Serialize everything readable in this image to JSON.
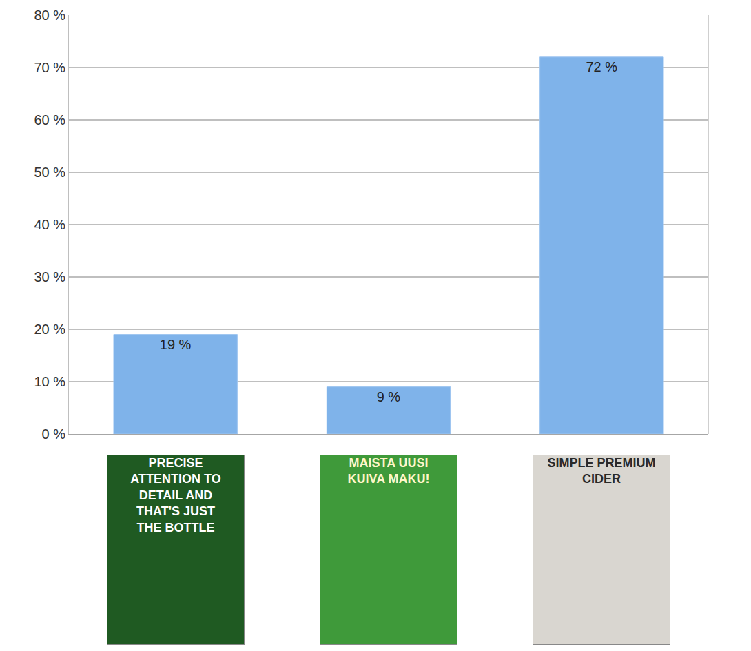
{
  "chart_data": {
    "type": "bar",
    "categories": [
      "PRECISE ATTENTION TO DETAIL AND THAT'S JUST THE BOTTLE",
      "MAISTA UUSI KUIVA MAKU!",
      "SIMPLE PREMIUM CIDER"
    ],
    "values": [
      19,
      9,
      72
    ],
    "value_labels": [
      "19 %",
      "9 %",
      "72 %"
    ],
    "data_labels": true,
    "color": "#7fb3ea",
    "ylim": [
      0,
      80
    ],
    "yticks": [
      {
        "value": 0,
        "label": "0 %"
      },
      {
        "value": 10,
        "label": "10 %"
      },
      {
        "value": 20,
        "label": "20 %"
      },
      {
        "value": 30,
        "label": "30 %"
      },
      {
        "value": 40,
        "label": "40 %"
      },
      {
        "value": 50,
        "label": "50 %"
      },
      {
        "value": 60,
        "label": "60 %"
      },
      {
        "value": 70,
        "label": "70 %"
      },
      {
        "value": 80,
        "label": "80 %"
      }
    ],
    "grid": true,
    "tick_labels": "y"
  }
}
